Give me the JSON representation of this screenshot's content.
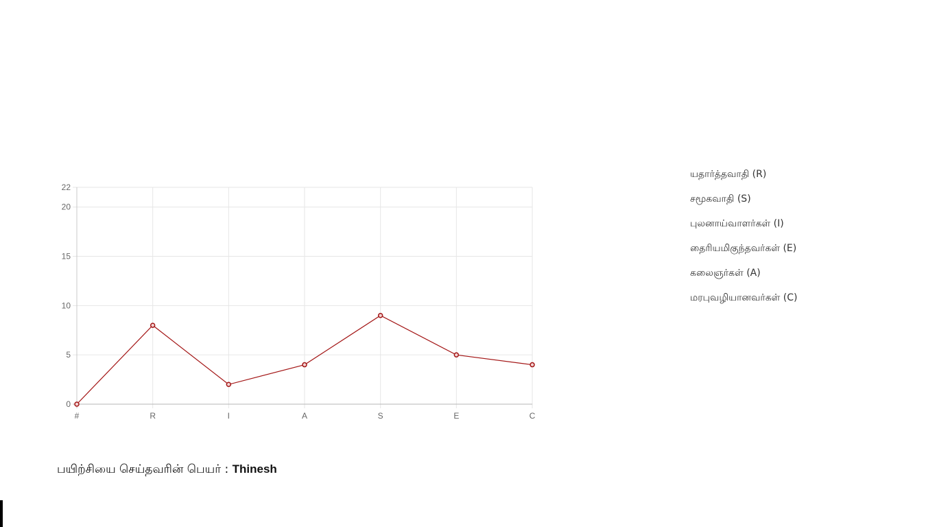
{
  "chart_data": {
    "type": "line",
    "categories": [
      "#",
      "R",
      "I",
      "A",
      "S",
      "E",
      "C"
    ],
    "values": [
      0,
      8,
      2,
      4,
      9,
      5,
      4
    ],
    "yticks": [
      0,
      5,
      10,
      15,
      20,
      22
    ],
    "ylim": [
      0,
      22
    ],
    "grid": true,
    "line_color": "#a31515",
    "point_fill": "#f3d3d3",
    "title": "",
    "xlabel": "",
    "ylabel": ""
  },
  "legend": {
    "items": [
      "யதார்த்தவாதி (R)",
      "சமூகவாதி (S)",
      "புலனாய்வாளர்கள் (I)",
      "தைரியமிகுந்தவர்கள் (E)",
      "கலைஞர்கள் (A)",
      "மரபுவழியானவர்கள் (C)"
    ]
  },
  "author": {
    "label": "பயிற்சியை செய்தவரின் பெயர் : ",
    "name": "Thinesh"
  }
}
